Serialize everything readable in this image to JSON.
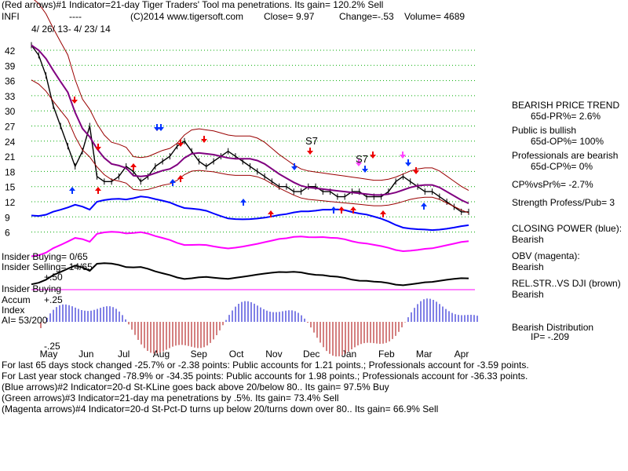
{
  "header": {
    "line1": "(Red arrows)#1 Indicator=21-day Tiger Traders' Tool ma penetrations. Its gain= 120.2% Sell",
    "ticker": "INFI",
    "dashes": "----",
    "copyright": "(C)2014 www.tigersoft.com",
    "close": "Close=  9.97",
    "change": "Change=-.53",
    "volume": "Volume= 4689",
    "date_range": "4/ 26/ 13-  4/ 23/ 14"
  },
  "chart_data": {
    "type": "line",
    "title": "INFI",
    "y_ticks": [
      "42",
      "39",
      "36",
      "33",
      "30",
      "27",
      "24",
      "21",
      "18",
      "15",
      "12",
      "9",
      "6"
    ],
    "x_months": [
      "May",
      "Jun",
      "Jul",
      "Aug",
      "Sep",
      "Oct",
      "Nov",
      "Dec",
      "Jan",
      "Feb",
      "Mar",
      "Apr"
    ],
    "price_close": [
      43,
      41,
      37,
      31,
      27,
      23,
      19,
      22,
      27,
      17,
      16,
      16,
      17,
      19,
      18,
      16,
      17,
      19,
      20,
      21,
      23,
      24,
      22,
      20,
      19,
      20,
      21,
      22,
      21,
      20,
      19,
      18,
      17,
      16,
      15,
      15,
      14,
      14,
      15,
      15,
      14,
      14,
      13,
      13,
      14,
      14,
      13,
      13,
      13,
      14,
      16,
      17,
      16,
      15,
      14,
      14,
      13,
      12,
      11,
      10,
      10
    ],
    "ma_label": "21-day ma",
    "annotations": [
      "S7",
      "S7"
    ],
    "panels": [
      "Closing Power",
      "OBV",
      "Rel.Str vs DJI",
      "Accum Index"
    ],
    "accum_labels": {
      "plus50": "+.50",
      "plus25": "+.25",
      "minus25": "-.25"
    }
  },
  "left_labels": {
    "insider_buying_frac": "Insider Buying= 0/65",
    "insider_selling": "Insider Selling= 14/65",
    "insider_buying": "Insider Buying",
    "accum": "Accum",
    "index": "Index",
    "ai": "AI= 53/200"
  },
  "right_panel": {
    "trend": "BEARISH PRICE TREND",
    "pr": "65d-PR%= 2.6%",
    "public_bullish": "Public is bullish",
    "op": "65d-OP%= 100%",
    "prof_bearish": "Professionals are bearish",
    "cp": "65d-CP%= 0%",
    "cpvspr": "CP%vsPr%= -2.7%",
    "strength": "Strength Profess/Pub= 3",
    "closing_power": "CLOSING POWER (blue):",
    "closing_power_val": "Bearish",
    "obv": "OBV (magenta):",
    "obv_val": "Bearish",
    "relstr": "REL.STR..VS DJI (brown)",
    "relstr_val": "Bearish",
    "distribution": "Bearish Distribution",
    "ip": "IP= -.209"
  },
  "footer": {
    "line1": "For last 65 days stock changed -25.7% or -2.38 points:  Public accounts for  1.21 points.;  Professionals account for -3.59 points.",
    "line2": "For Last year stock changed -78.9% or -34.35 points:  Public accounts for  1.98 points.;  Professionals account for -36.33 points.",
    "line3": "(Blue arrows)#2 Indicator=20-d St-KLine goes back above 20/below 80.. Its gain= 97.5% Buy",
    "line4": "(Green arrows)#3 Indicator=21-day ma penetrations by .5%. Its gain= 73.4% Sell",
    "line5": "(Magenta arrows)#4 Indicator=20-d St-Pct-D turns up below 20/turns down over 80.. Its gain= 66.9% Sell"
  },
  "colors": {
    "grid": "#00aa00",
    "price": "#000000",
    "envelope": "#990000",
    "ma": "#800080",
    "closing_power": "#0000ff",
    "obv": "#ff00ff",
    "relstr": "#000000",
    "accum_pos": "#0000cc",
    "accum_neg": "#aa0000",
    "arrow_red": "#ee0000",
    "arrow_blue": "#0033ff",
    "arrow_magenta": "#ff44ff"
  }
}
